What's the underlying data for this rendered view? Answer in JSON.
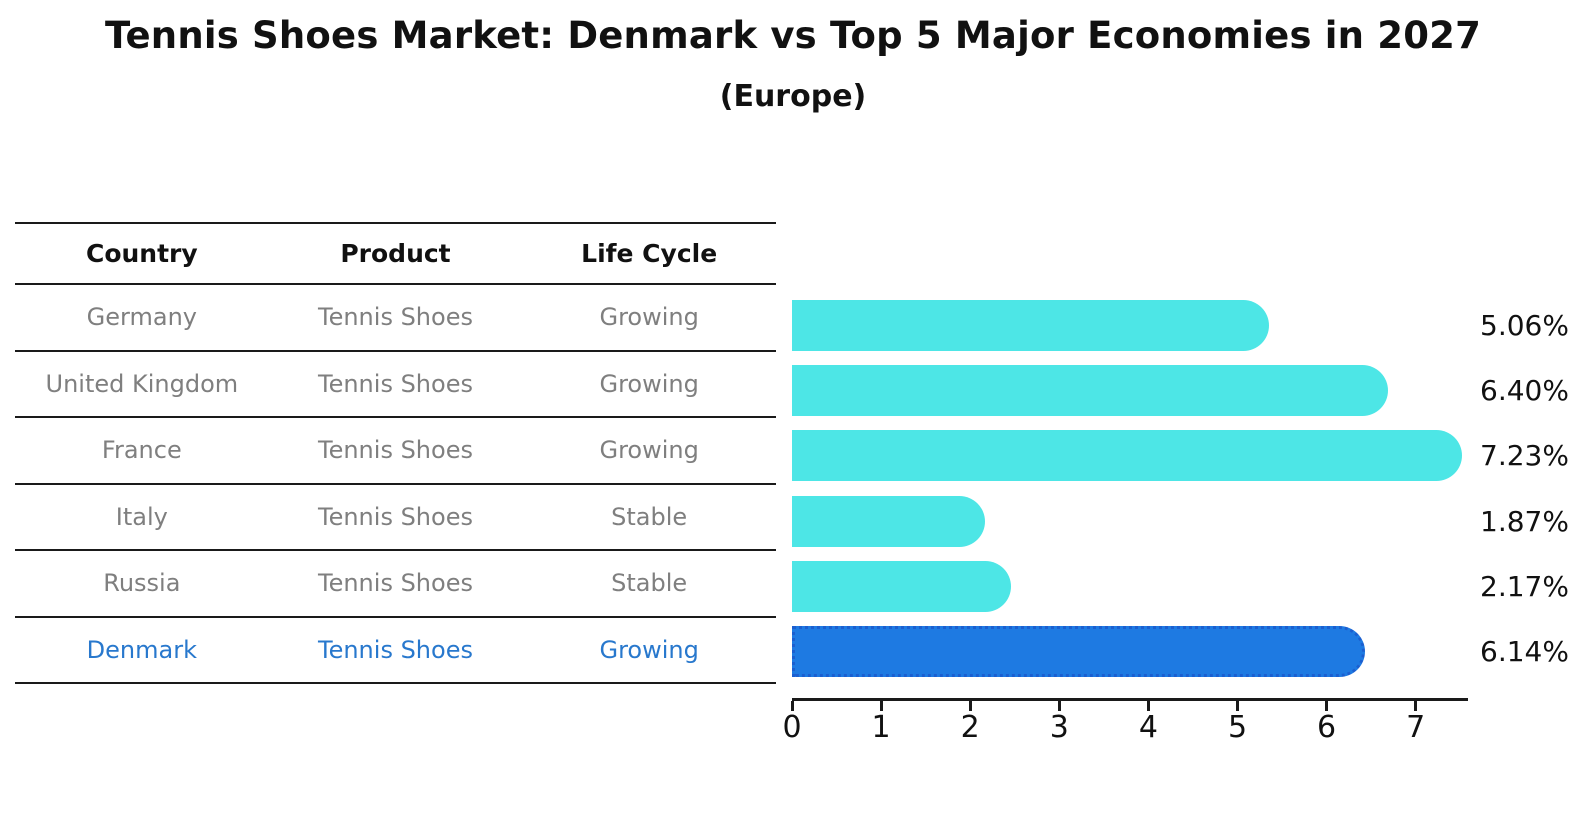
{
  "title": "Tennis Shoes Market: Denmark vs Top 5 Major Economies in 2027",
  "subtitle": "(Europe)",
  "table": {
    "headers": [
      "Country",
      "Product",
      "Life Cycle"
    ],
    "rows": [
      {
        "country": "Germany",
        "product": "Tennis Shoes",
        "life_cycle": "Growing"
      },
      {
        "country": "United Kingdom",
        "product": "Tennis Shoes",
        "life_cycle": "Growing"
      },
      {
        "country": "France",
        "product": "Tennis Shoes",
        "life_cycle": "Growing"
      },
      {
        "country": "Italy",
        "product": "Tennis Shoes",
        "life_cycle": "Stable"
      },
      {
        "country": "Russia",
        "product": "Tennis Shoes",
        "life_cycle": "Stable"
      },
      {
        "country": "Denmark",
        "product": "Tennis Shoes",
        "life_cycle": "Growing"
      }
    ],
    "highlight_row": 5
  },
  "chart_data": {
    "type": "bar",
    "orientation": "horizontal",
    "title": "Tennis Shoes Market: Denmark vs Top 5 Major Economies in 2027 (Europe)",
    "categories": [
      "Germany",
      "United Kingdom",
      "France",
      "Italy",
      "Russia",
      "Denmark"
    ],
    "values": [
      5.06,
      6.4,
      7.23,
      1.87,
      2.17,
      6.14
    ],
    "value_labels": [
      "5.06%",
      "6.40%",
      "7.23%",
      "1.87%",
      "2.17%",
      "6.14%"
    ],
    "x_ticks": [
      "0",
      "1",
      "2",
      "3",
      "4",
      "5",
      "6",
      "7"
    ],
    "xlim": [
      0,
      7.59
    ],
    "grid": "off",
    "legend": "none",
    "bar_color": "#4DE6E6",
    "highlight_color": "#1E7AE2",
    "highlight_border_color": "#1B5FD0",
    "highlight_index": 5,
    "axis_color": "#1a1a1a",
    "text_color": "#111111",
    "muted_text_color": "#7f7f7f",
    "highlight_text_color": "#2878CD"
  }
}
